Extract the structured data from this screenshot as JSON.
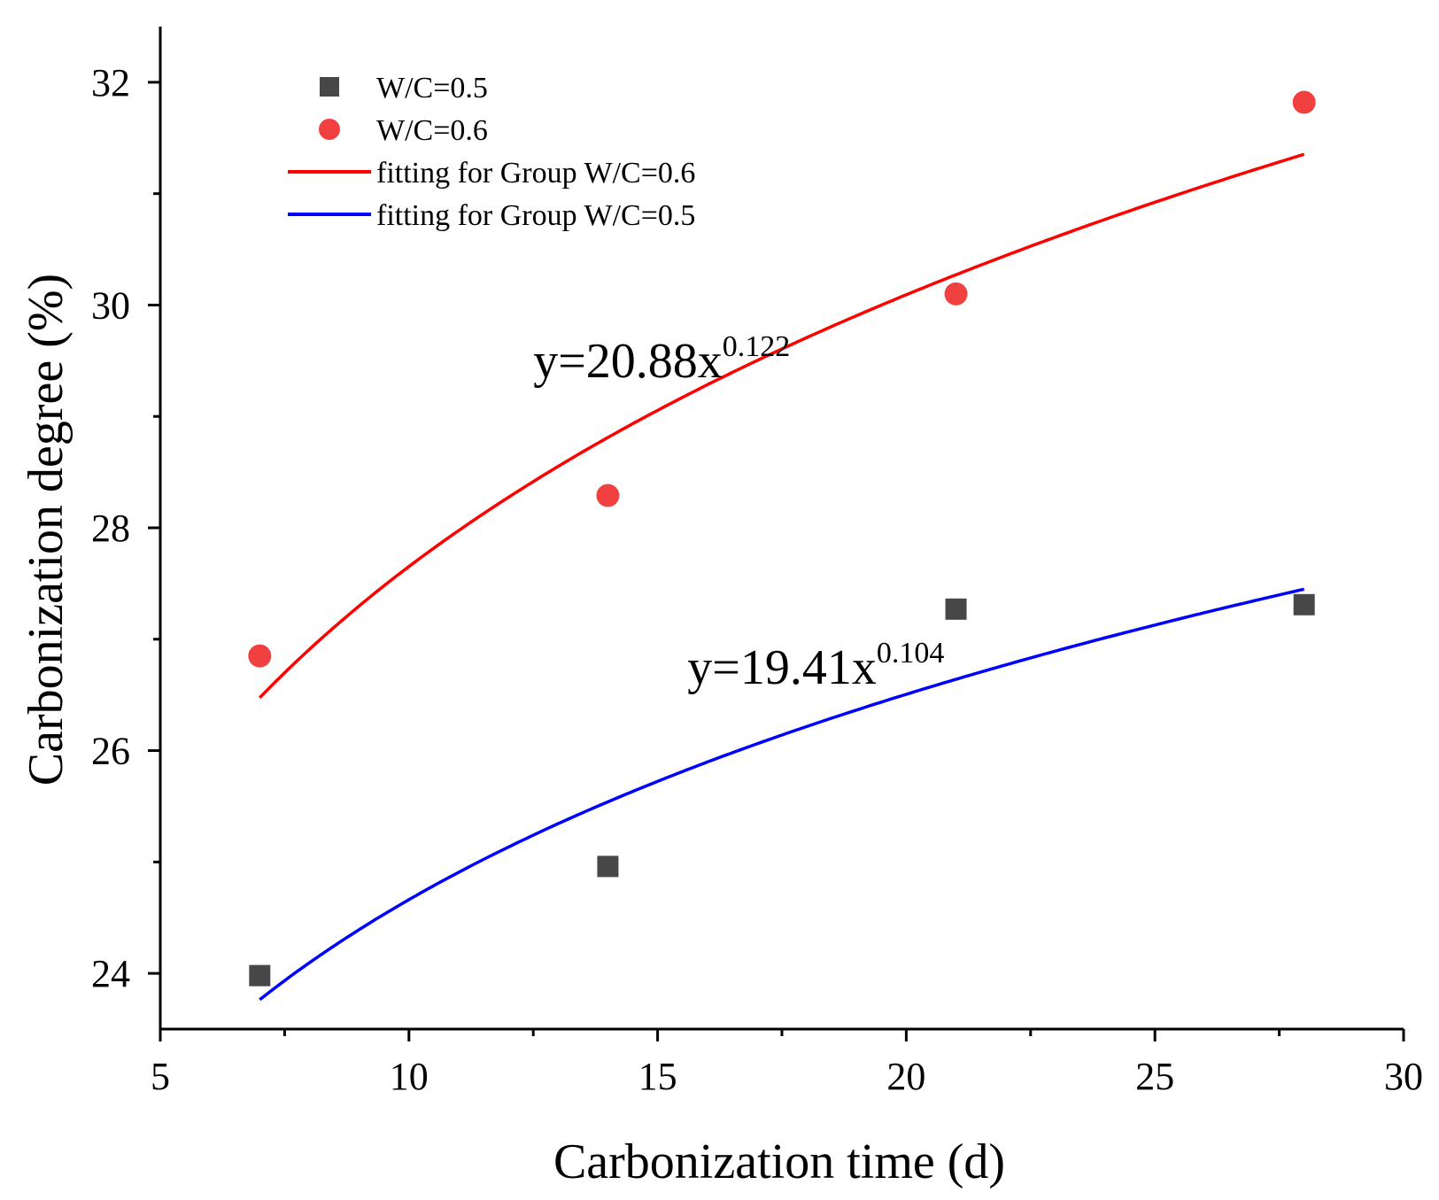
{
  "chart_data": {
    "type": "scatter",
    "xlabel": "Carbonization time (d)",
    "ylabel": "Carbonization degree (%)",
    "xlim": [
      5,
      30
    ],
    "ylim": [
      23.5,
      32.5
    ],
    "xticks": [
      5,
      10,
      15,
      20,
      25,
      30
    ],
    "xtick_labels": [
      "5",
      "10",
      "15",
      "20",
      "25",
      "30"
    ],
    "yticks": [
      24,
      26,
      28,
      30,
      32
    ],
    "ytick_labels": [
      "24",
      "26",
      "28",
      "30",
      "32"
    ],
    "grid": false,
    "legend_position": "top-left",
    "series": [
      {
        "name": "W/C=0.5",
        "kind": "points",
        "marker": "square",
        "color": "#474747",
        "x": [
          7,
          14,
          21,
          28
        ],
        "y": [
          23.98,
          24.96,
          27.27,
          27.31
        ]
      },
      {
        "name": "W/C=0.6",
        "kind": "points",
        "marker": "circle",
        "color": "#f04040",
        "x": [
          7,
          14,
          21,
          28
        ],
        "y": [
          26.85,
          28.29,
          30.1,
          31.82
        ]
      },
      {
        "name": "fitting for Group W/C=0.6",
        "kind": "fit",
        "color": "#ff0000",
        "coef": 20.88,
        "exponent": 0.122,
        "x_range": [
          7,
          28
        ]
      },
      {
        "name": "fitting for Group W/C=0.5",
        "kind": "fit",
        "color": "#0000ff",
        "coef": 19.41,
        "exponent": 0.104,
        "x_range": [
          7,
          28
        ]
      }
    ],
    "annotations": [
      {
        "id": "eq-red",
        "base": "y=20.88x",
        "sup": "0.122",
        "x": 12.5,
        "y": 29.35
      },
      {
        "id": "eq-blue",
        "base": "y=19.41x",
        "sup": "0.104",
        "x": 15.6,
        "y": 26.6
      }
    ]
  }
}
